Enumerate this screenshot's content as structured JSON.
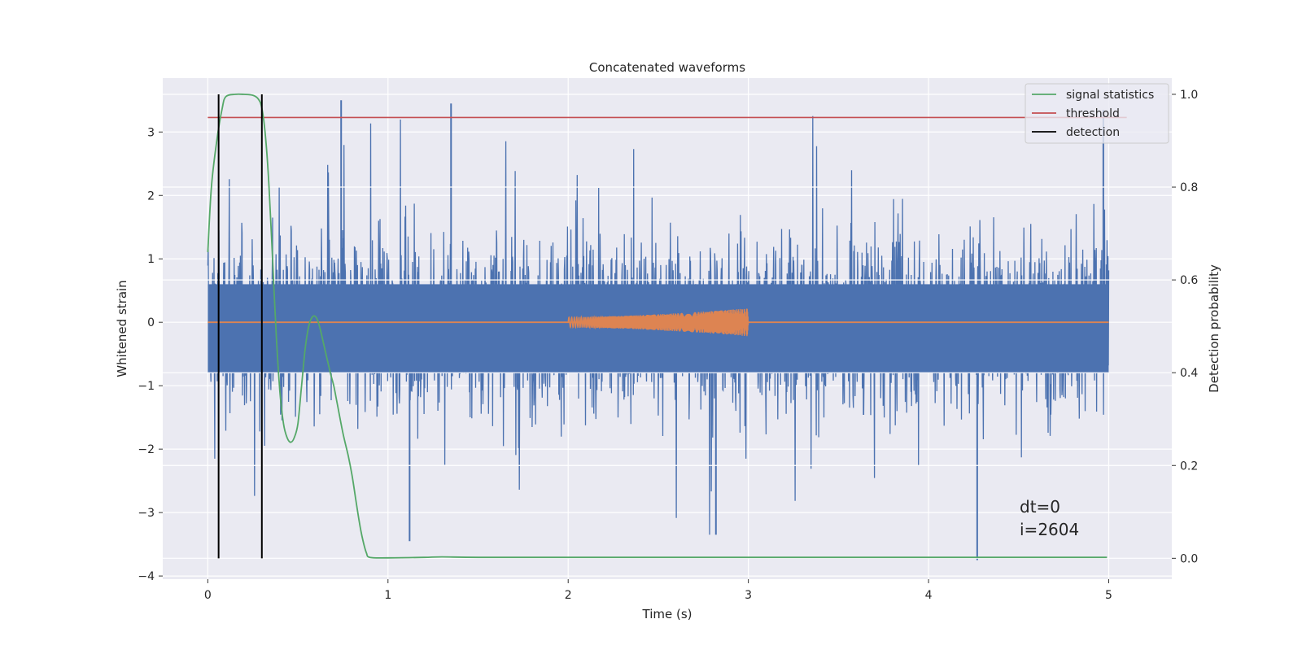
{
  "chart_data": {
    "type": "line",
    "title": "Concatenated waveforms",
    "xlabel": "Time (s)",
    "ylabel": "Whitened strain",
    "y2label": "Detection probability",
    "xlim": [
      -0.25,
      5.35
    ],
    "ylim": [
      -4.05,
      3.85
    ],
    "y2lim": [
      -0.045,
      1.035
    ],
    "x_ticks": [
      "0",
      "1",
      "2",
      "3",
      "4",
      "5"
    ],
    "y_ticks": [
      "3",
      "2",
      "1",
      "0",
      "−1",
      "−2",
      "−3",
      "−4"
    ],
    "y2_ticks": [
      "1.0",
      "0.8",
      "0.6",
      "0.4",
      "0.2",
      "0.0"
    ],
    "grid": true,
    "legend_position": "top-right",
    "legend": [
      "signal statistics",
      "threshold",
      "detection"
    ],
    "colors": {
      "noise": "#4c72b0",
      "injected": "#dd8452",
      "signal_statistics": "#55a868",
      "threshold": "#c44e52",
      "detection": "#000000",
      "background": "#eaeaf2",
      "grid": "#ffffff"
    },
    "series": [
      {
        "name": "",
        "axis": "left",
        "description_only": "whitened noise strain",
        "x_range": [
          0,
          5
        ],
        "amplitude_band": [
          -3.75,
          3.55
        ],
        "dense_band": [
          -0.8,
          0.6
        ],
        "notable_peaks": [
          {
            "x": 0.74,
            "y": 3.5
          },
          {
            "x": 1.35,
            "y": 3.45
          },
          {
            "x": 4.97,
            "y": 3.35
          },
          {
            "x": 4.27,
            "y": -3.75
          },
          {
            "x": 1.12,
            "y": -3.45
          },
          {
            "x": 2.82,
            "y": -3.35
          }
        ]
      },
      {
        "name": "",
        "axis": "left",
        "x_range": [
          0,
          5
        ],
        "chirp_x_range": [
          2.0,
          3.0
        ],
        "chirp_amplitude": [
          0.08,
          0.22
        ]
      },
      {
        "name": "signal statistics",
        "axis": "right",
        "x": [
          0.0,
          0.02,
          0.05,
          0.08,
          0.1,
          0.15,
          0.2,
          0.25,
          0.28,
          0.3,
          0.32,
          0.34,
          0.36,
          0.38,
          0.4,
          0.42,
          0.44,
          0.46,
          0.48,
          0.5,
          0.52,
          0.54,
          0.56,
          0.58,
          0.6,
          0.62,
          0.65,
          0.68,
          0.7,
          0.72,
          0.75,
          0.78,
          0.8,
          0.82,
          0.84,
          0.86,
          0.88,
          0.9,
          1.0,
          1.2,
          1.3,
          1.5,
          2.0,
          3.0,
          4.0,
          4.99
        ],
        "values": [
          0.66,
          0.8,
          0.9,
          0.97,
          0.995,
          1.0,
          1.0,
          0.998,
          0.99,
          0.97,
          0.91,
          0.8,
          0.64,
          0.48,
          0.36,
          0.29,
          0.26,
          0.25,
          0.26,
          0.29,
          0.37,
          0.45,
          0.5,
          0.52,
          0.52,
          0.5,
          0.45,
          0.4,
          0.37,
          0.33,
          0.27,
          0.22,
          0.18,
          0.13,
          0.08,
          0.04,
          0.012,
          0.002,
          0.001,
          0.002,
          0.003,
          0.002,
          0.002,
          0.002,
          0.002,
          0.002
        ]
      },
      {
        "name": "threshold",
        "axis": "right",
        "x": [
          0,
          5.1
        ],
        "values": [
          0.95,
          0.95
        ]
      },
      {
        "name": "detection",
        "axis": "right",
        "x_positions": [
          0.06,
          0.3
        ],
        "range": [
          0.0,
          1.0
        ]
      }
    ],
    "annotations": [
      "dt=0",
      "i=2604"
    ]
  }
}
